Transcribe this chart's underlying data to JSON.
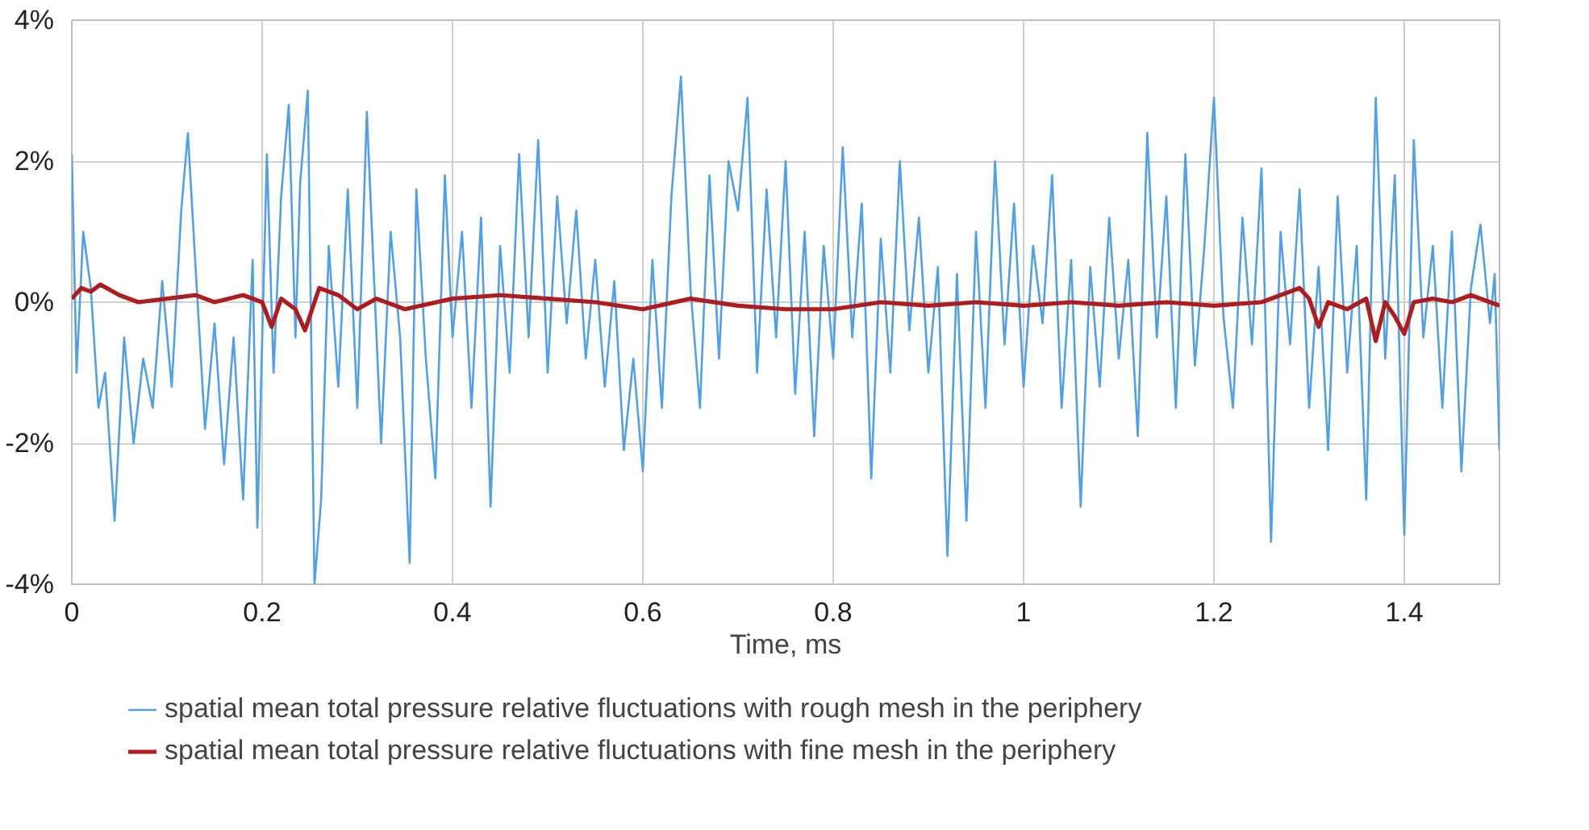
{
  "chart_data": {
    "type": "line",
    "xlabel": "Time, ms",
    "xlim": [
      0,
      1.5
    ],
    "xticks": [
      0,
      0.2,
      0.4,
      0.6,
      0.8,
      1,
      1.2,
      1.4
    ],
    "ylim": [
      -4,
      4
    ],
    "yticks": [
      {
        "value": -4,
        "label": "-4%"
      },
      {
        "value": -2,
        "label": "-2%"
      },
      {
        "value": 0,
        "label": "0%"
      },
      {
        "value": 2,
        "label": "2%"
      },
      {
        "value": 4,
        "label": "4%"
      }
    ],
    "grid": true,
    "legend": "bottom",
    "marker": "none",
    "line_style": "solid",
    "series": [
      {
        "name": "spatial mean total pressure relative fluctuations with rough mesh in the periphery",
        "color": "#4fa0e8",
        "x": [
          0.0,
          0.005,
          0.012,
          0.02,
          0.028,
          0.035,
          0.045,
          0.055,
          0.065,
          0.075,
          0.085,
          0.095,
          0.105,
          0.115,
          0.122,
          0.13,
          0.14,
          0.15,
          0.16,
          0.17,
          0.18,
          0.19,
          0.195,
          0.205,
          0.212,
          0.22,
          0.228,
          0.235,
          0.24,
          0.248,
          0.255,
          0.262,
          0.27,
          0.28,
          0.29,
          0.3,
          0.31,
          0.318,
          0.325,
          0.335,
          0.345,
          0.355,
          0.362,
          0.372,
          0.382,
          0.392,
          0.4,
          0.41,
          0.42,
          0.43,
          0.44,
          0.45,
          0.46,
          0.47,
          0.48,
          0.49,
          0.5,
          0.51,
          0.52,
          0.53,
          0.54,
          0.55,
          0.56,
          0.57,
          0.58,
          0.59,
          0.6,
          0.61,
          0.62,
          0.63,
          0.64,
          0.65,
          0.66,
          0.67,
          0.68,
          0.69,
          0.7,
          0.71,
          0.72,
          0.73,
          0.74,
          0.75,
          0.76,
          0.77,
          0.78,
          0.79,
          0.8,
          0.81,
          0.82,
          0.83,
          0.84,
          0.85,
          0.86,
          0.87,
          0.88,
          0.89,
          0.9,
          0.91,
          0.92,
          0.93,
          0.94,
          0.95,
          0.96,
          0.97,
          0.98,
          0.99,
          1.0,
          1.01,
          1.02,
          1.03,
          1.04,
          1.05,
          1.06,
          1.07,
          1.08,
          1.09,
          1.1,
          1.11,
          1.12,
          1.13,
          1.14,
          1.15,
          1.16,
          1.17,
          1.18,
          1.19,
          1.2,
          1.21,
          1.22,
          1.23,
          1.24,
          1.25,
          1.26,
          1.27,
          1.28,
          1.29,
          1.3,
          1.31,
          1.32,
          1.33,
          1.34,
          1.35,
          1.36,
          1.37,
          1.38,
          1.39,
          1.4,
          1.41,
          1.42,
          1.43,
          1.44,
          1.45,
          1.46,
          1.47,
          1.48,
          1.49,
          1.495,
          1.5
        ],
        "values": [
          2.1,
          -1.0,
          1.0,
          0.2,
          -1.5,
          -1.0,
          -3.1,
          -0.5,
          -2.0,
          -0.8,
          -1.5,
          0.3,
          -1.2,
          1.3,
          2.4,
          0.5,
          -1.8,
          -0.3,
          -2.3,
          -0.5,
          -2.8,
          0.6,
          -3.2,
          2.1,
          -1.0,
          1.5,
          2.8,
          -0.5,
          1.7,
          3.0,
          -4.0,
          -2.8,
          0.8,
          -1.2,
          1.6,
          -1.5,
          2.7,
          0.2,
          -2.0,
          1.0,
          -0.5,
          -3.7,
          1.6,
          -0.8,
          -2.5,
          1.8,
          -0.5,
          1.0,
          -1.5,
          1.2,
          -2.9,
          0.8,
          -1.0,
          2.1,
          -0.5,
          2.3,
          -1.0,
          1.5,
          -0.3,
          1.3,
          -0.8,
          0.6,
          -1.2,
          0.3,
          -2.1,
          -0.8,
          -2.4,
          0.6,
          -1.5,
          1.5,
          3.2,
          0.2,
          -1.5,
          1.8,
          -0.8,
          2.0,
          1.3,
          2.9,
          -1.0,
          1.6,
          -0.5,
          2.0,
          -1.3,
          1.0,
          -1.9,
          0.8,
          -0.8,
          2.2,
          -0.5,
          1.4,
          -2.5,
          0.9,
          -1.0,
          2.0,
          -0.4,
          1.2,
          -1.0,
          0.5,
          -3.6,
          0.4,
          -3.1,
          1.0,
          -1.5,
          2.0,
          -0.6,
          1.4,
          -1.2,
          0.8,
          -0.3,
          1.8,
          -1.5,
          0.6,
          -2.9,
          0.5,
          -1.2,
          1.2,
          -0.8,
          0.6,
          -1.9,
          2.4,
          -0.5,
          1.5,
          -1.5,
          2.1,
          -0.9,
          0.8,
          2.9,
          -0.2,
          -1.5,
          1.2,
          -0.6,
          1.9,
          -3.4,
          1.0,
          -0.6,
          1.6,
          -1.5,
          0.5,
          -2.1,
          1.5,
          -1.0,
          0.8,
          -2.8,
          2.9,
          -0.8,
          1.8,
          -3.3,
          2.3,
          -0.5,
          0.8,
          -1.5,
          1.0,
          -2.4,
          0.2,
          1.1,
          -0.3,
          0.4,
          -2.1
        ]
      },
      {
        "name": "spatial mean total pressure relative fluctuations with fine mesh in the periphery",
        "color": "#b01c1c",
        "x": [
          0,
          0.01,
          0.02,
          0.03,
          0.05,
          0.07,
          0.1,
          0.13,
          0.15,
          0.18,
          0.2,
          0.21,
          0.22,
          0.235,
          0.245,
          0.26,
          0.28,
          0.3,
          0.32,
          0.35,
          0.4,
          0.45,
          0.5,
          0.55,
          0.6,
          0.65,
          0.7,
          0.75,
          0.8,
          0.85,
          0.9,
          0.95,
          1.0,
          1.05,
          1.1,
          1.15,
          1.2,
          1.25,
          1.29,
          1.3,
          1.31,
          1.32,
          1.34,
          1.36,
          1.37,
          1.38,
          1.39,
          1.4,
          1.41,
          1.43,
          1.45,
          1.47,
          1.5
        ],
        "values": [
          0.05,
          0.2,
          0.15,
          0.25,
          0.1,
          0.0,
          0.05,
          0.1,
          0.0,
          0.1,
          0.0,
          -0.35,
          0.05,
          -0.1,
          -0.4,
          0.2,
          0.1,
          -0.1,
          0.05,
          -0.1,
          0.05,
          0.1,
          0.05,
          0.0,
          -0.1,
          0.05,
          -0.05,
          -0.1,
          -0.1,
          0.0,
          -0.05,
          0.0,
          -0.05,
          0.0,
          -0.05,
          0.0,
          -0.05,
          0.0,
          0.2,
          0.05,
          -0.35,
          0.0,
          -0.1,
          0.05,
          -0.55,
          0.0,
          -0.2,
          -0.45,
          0.0,
          0.05,
          0.0,
          0.1,
          -0.05
        ]
      }
    ]
  }
}
